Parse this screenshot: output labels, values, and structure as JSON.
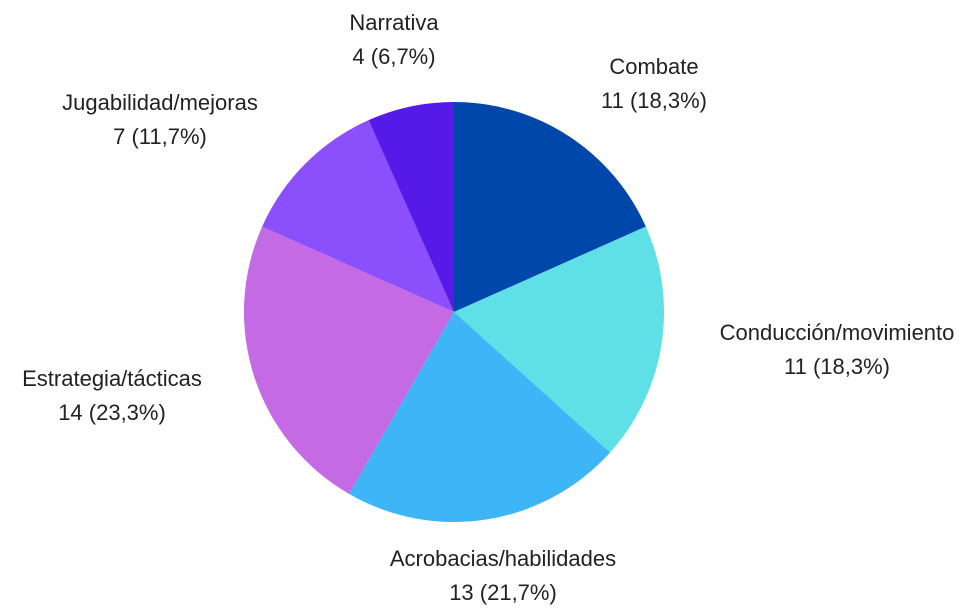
{
  "chart_data": {
    "type": "pie",
    "start_angle_deg": 0,
    "direction": "clockwise",
    "labels_position": "outside",
    "slices": [
      {
        "label": "Combate",
        "value": 11,
        "display": "11 (18,3%)",
        "color": "#0047AB"
      },
      {
        "label": "Conducción/movimiento",
        "value": 11,
        "display": "11 (18,3%)",
        "color": "#5FDFE6"
      },
      {
        "label": "Acrobacias/habilidades",
        "value": 13,
        "display": "13 (21,7%)",
        "color": "#3DB5F7"
      },
      {
        "label": "Estrategia/tácticas",
        "value": 14,
        "display": "14 (23,3%)",
        "color": "#C56AE5"
      },
      {
        "label": "Jugabilidad/mejoras",
        "value": 7,
        "display": "7 (11,7%)",
        "color": "#8B4FFB"
      },
      {
        "label": "Narrativa",
        "value": 4,
        "display": "4 (6,7%)",
        "color": "#5519E8"
      }
    ]
  }
}
